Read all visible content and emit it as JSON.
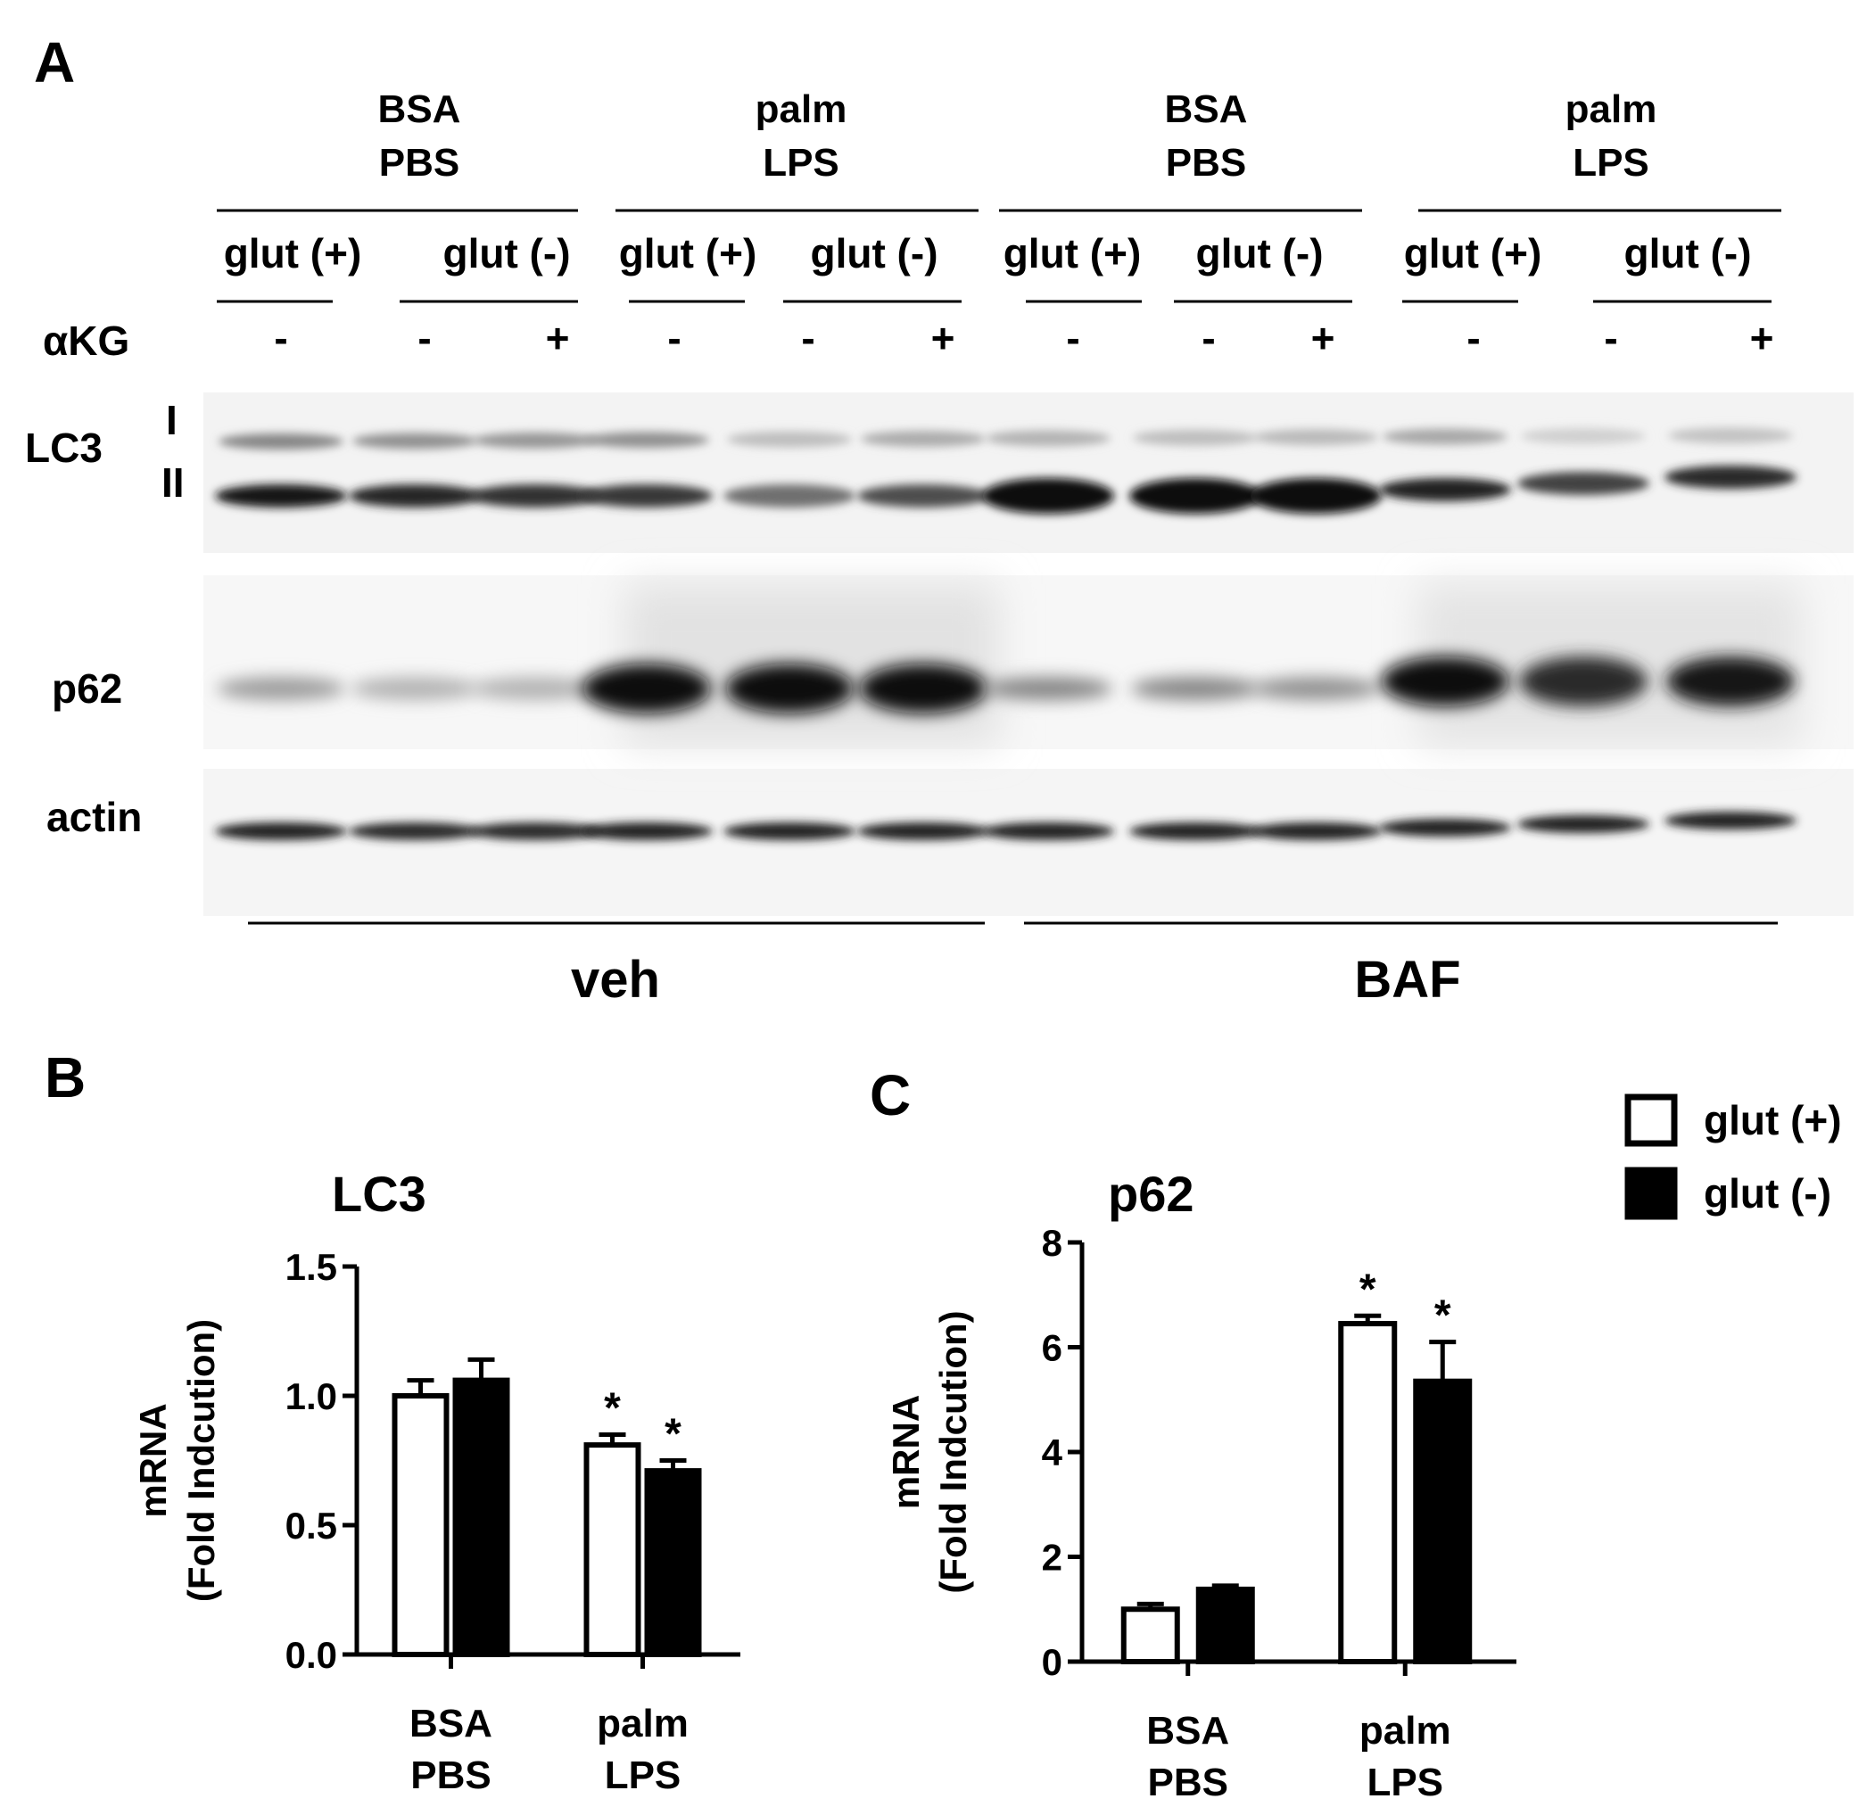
{
  "panel_a": {
    "label": "A",
    "groups": [
      {
        "line1": "BSA",
        "line2": "PBS"
      },
      {
        "line1": "palm",
        "line2": "LPS"
      },
      {
        "line1": "BSA",
        "line2": "PBS"
      },
      {
        "line1": "palm",
        "line2": "LPS"
      }
    ],
    "glut_labels": [
      "glut (+)",
      "glut (-)",
      "glut (+)",
      "glut (-)",
      "glut (+)",
      "glut (-)",
      "glut (+)",
      "glut (-)"
    ],
    "akg_label": "αKG",
    "akg_values": [
      "-",
      "-",
      "+",
      "-",
      "-",
      "+",
      "-",
      "-",
      "+",
      "-",
      "-",
      "+"
    ],
    "row_labels": {
      "lc3": "LC3",
      "lc3_i": "I",
      "lc3_ii": "II",
      "p62": "p62",
      "actin": "actin"
    },
    "treatments": [
      "veh",
      "BAF"
    ]
  },
  "legend": {
    "glut_plus": "glut (+)",
    "glut_minus": "glut (-)"
  },
  "chart_data": [
    {
      "panel": "B",
      "type": "bar",
      "title": "LC3",
      "ylabel_line1": "mRNA",
      "ylabel_line2": "(Fold Indcution)",
      "ylim": [
        0,
        1.5
      ],
      "yticks": [
        "0.0",
        "0.5",
        "1.0",
        "1.5"
      ],
      "categories": [
        {
          "line1": "BSA",
          "line2": "PBS"
        },
        {
          "line1": "palm",
          "line2": "LPS"
        }
      ],
      "series": [
        {
          "name": "glut (+)",
          "fill": "#ffffff",
          "values": [
            1.0,
            0.81
          ],
          "errors": [
            0.06,
            0.04
          ],
          "significant": [
            false,
            true
          ]
        },
        {
          "name": "glut (-)",
          "fill": "#000000",
          "values": [
            1.06,
            0.71
          ],
          "errors": [
            0.08,
            0.04
          ],
          "significant": [
            false,
            true
          ]
        }
      ],
      "significance_mark": "*"
    },
    {
      "panel": "C",
      "type": "bar",
      "title": "p62",
      "ylabel_line1": "mRNA",
      "ylabel_line2": "(Fold Indcution)",
      "ylim": [
        0,
        8
      ],
      "yticks": [
        "0",
        "2",
        "4",
        "6",
        "8"
      ],
      "categories": [
        {
          "line1": "BSA",
          "line2": "PBS"
        },
        {
          "line1": "palm",
          "line2": "LPS"
        }
      ],
      "series": [
        {
          "name": "glut (+)",
          "fill": "#ffffff",
          "values": [
            1.0,
            6.45
          ],
          "errors": [
            0.1,
            0.15
          ],
          "significant": [
            false,
            true
          ]
        },
        {
          "name": "glut (-)",
          "fill": "#000000",
          "values": [
            1.38,
            5.35
          ],
          "errors": [
            0.07,
            0.75
          ],
          "significant": [
            false,
            true
          ]
        }
      ],
      "significance_mark": "*"
    }
  ]
}
